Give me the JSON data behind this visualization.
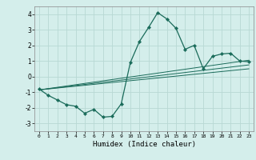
{
  "xlabel": "Humidex (Indice chaleur)",
  "background_color": "#d4eeeb",
  "grid_color": "#b8d8d4",
  "line_color": "#1a6b5a",
  "x_values": [
    0,
    1,
    2,
    3,
    4,
    5,
    6,
    7,
    8,
    9,
    10,
    11,
    12,
    13,
    14,
    15,
    16,
    17,
    18,
    19,
    20,
    21,
    22,
    23
  ],
  "y_main": [
    -0.8,
    -1.2,
    -1.5,
    -1.8,
    -1.9,
    -2.35,
    -2.1,
    -2.6,
    -2.55,
    -1.75,
    0.9,
    2.25,
    3.15,
    4.1,
    3.7,
    3.1,
    1.75,
    2.0,
    0.5,
    1.3,
    1.45,
    1.5,
    1.0,
    0.95
  ],
  "regression_lines": [
    {
      "start_x": 0,
      "start_y": -0.85,
      "end_x": 23,
      "end_y": 0.75
    },
    {
      "start_x": 0,
      "start_y": -0.85,
      "end_x": 23,
      "end_y": 1.05
    },
    {
      "start_x": 0,
      "start_y": -0.85,
      "end_x": 23,
      "end_y": 0.5
    }
  ],
  "ylim": [
    -3.5,
    4.5
  ],
  "xlim": [
    -0.5,
    23.5
  ],
  "yticks": [
    -3,
    -2,
    -1,
    0,
    1,
    2,
    3,
    4
  ],
  "xticks": [
    0,
    1,
    2,
    3,
    4,
    5,
    6,
    7,
    8,
    9,
    10,
    11,
    12,
    13,
    14,
    15,
    16,
    17,
    18,
    19,
    20,
    21,
    22,
    23
  ]
}
